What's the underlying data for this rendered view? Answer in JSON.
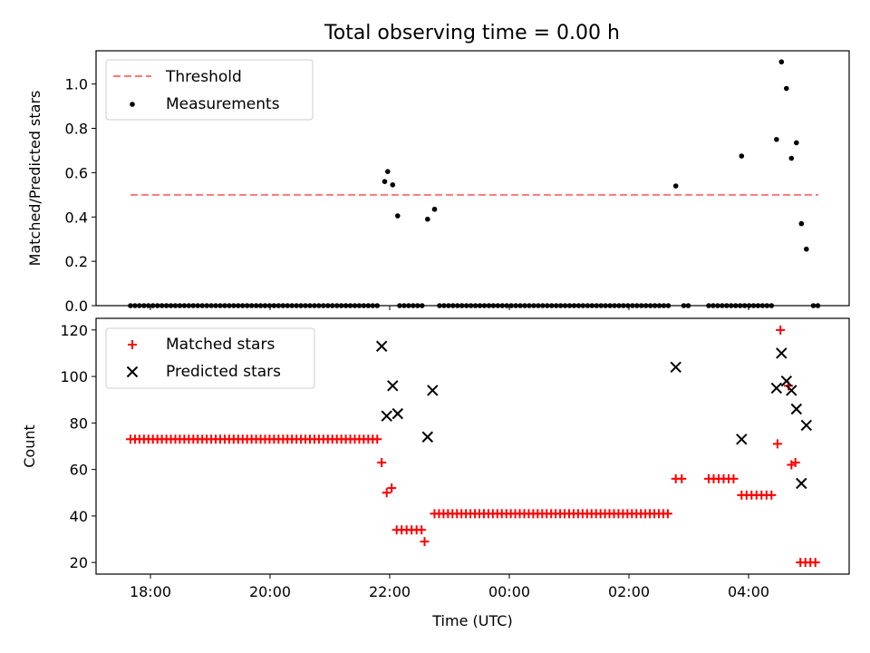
{
  "title": "Total observing time = 0.00 h",
  "colors": {
    "threshold": "#ff7777",
    "measurement": "#000000",
    "matched": "#ff0000",
    "predicted": "#000000"
  },
  "chart_data": [
    {
      "type": "scatter",
      "ylabel": "Matched/Predicted stars",
      "ylim": [
        0,
        1.15
      ],
      "yticks": [
        0.0,
        0.2,
        0.4,
        0.6,
        0.8,
        1.0
      ],
      "ytick_labels": [
        "0.0",
        "0.2",
        "0.4",
        "0.6",
        "0.8",
        "1.0"
      ],
      "legend": {
        "placement": "top-left",
        "entries": [
          "Threshold",
          "Measurements"
        ]
      },
      "threshold": {
        "name": "Threshold",
        "y": 0.5,
        "x_range": [
          "17:40",
          "05:10"
        ]
      },
      "series": [
        {
          "name": "Measurements",
          "points": [
            [
              "21:55",
              0.56
            ],
            [
              "21:58",
              0.605
            ],
            [
              "22:03",
              0.545
            ],
            [
              "22:08",
              0.405
            ],
            [
              "22:38",
              0.39
            ],
            [
              "22:45",
              0.435
            ],
            [
              "02:47",
              0.54
            ],
            [
              "03:53",
              0.675
            ],
            [
              "04:28",
              0.75
            ],
            [
              "04:33",
              1.1
            ],
            [
              "04:38",
              0.98
            ],
            [
              "04:43",
              0.665
            ],
            [
              "04:48",
              0.735
            ],
            [
              "04:53",
              0.37
            ],
            [
              "04:58",
              0.255
            ]
          ],
          "zero_segments": [
            [
              "17:40",
              "21:50"
            ],
            [
              "22:10",
              "22:35"
            ],
            [
              "22:50",
              "02:42"
            ],
            [
              "02:55",
              "03:00"
            ],
            [
              "03:20",
              "04:25"
            ],
            [
              "05:05",
              "05:10"
            ]
          ]
        }
      ]
    },
    {
      "type": "scatter",
      "xlabel": "Time (UTC)",
      "ylabel": "Count",
      "ylim": [
        15,
        125
      ],
      "yticks": [
        20,
        40,
        60,
        80,
        100,
        120
      ],
      "ytick_labels": [
        "20",
        "40",
        "60",
        "80",
        "100",
        "120"
      ],
      "xticks": [
        "18:00",
        "20:00",
        "22:00",
        "00:00",
        "02:00",
        "04:00"
      ],
      "legend": {
        "placement": "top-left",
        "entries": [
          "Matched stars",
          "Predicted stars"
        ]
      },
      "series": [
        {
          "name": "Matched stars",
          "points": [
            [
              "21:52",
              63
            ],
            [
              "21:57",
              50
            ],
            [
              "22:02",
              52
            ],
            [
              "22:35",
              29
            ],
            [
              "04:29",
              71
            ],
            [
              "04:32",
              120
            ],
            [
              "04:40",
              96
            ],
            [
              "04:43",
              62
            ],
            [
              "04:47",
              63
            ]
          ],
          "runs": [
            {
              "from": "17:40",
              "to": "21:48",
              "step_min": 4.5,
              "y": 73
            },
            {
              "from": "22:07",
              "to": "22:33",
              "step_min": 5,
              "y": 34
            },
            {
              "from": "22:45",
              "to": "02:42",
              "step_min": 4.5,
              "y": 41
            },
            {
              "from": "02:47",
              "to": "02:57",
              "step_min": 6,
              "y": 56
            },
            {
              "from": "03:20",
              "to": "03:45",
              "step_min": 5,
              "y": 56
            },
            {
              "from": "03:53",
              "to": "04:23",
              "step_min": 5,
              "y": 49
            },
            {
              "from": "04:52",
              "to": "05:08",
              "step_min": 5,
              "y": 20
            }
          ]
        },
        {
          "name": "Predicted stars",
          "points": [
            [
              "21:52",
              113
            ],
            [
              "21:57",
              83
            ],
            [
              "22:03",
              96
            ],
            [
              "22:08",
              84
            ],
            [
              "22:38",
              74
            ],
            [
              "22:43",
              94
            ],
            [
              "02:47",
              104
            ],
            [
              "03:53",
              73
            ],
            [
              "04:28",
              95
            ],
            [
              "04:33",
              110
            ],
            [
              "04:38",
              98
            ],
            [
              "04:43",
              94
            ],
            [
              "04:48",
              86
            ],
            [
              "04:53",
              54
            ],
            [
              "04:58",
              79
            ]
          ]
        }
      ]
    }
  ]
}
